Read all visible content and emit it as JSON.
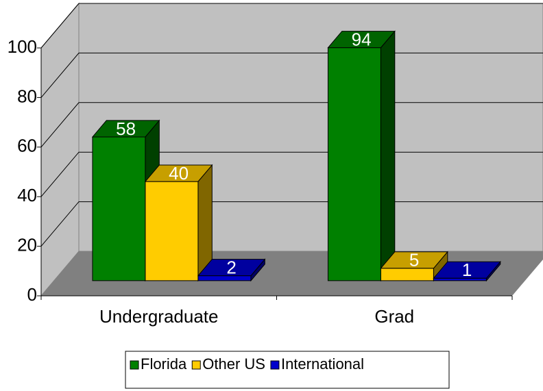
{
  "chart_data": {
    "type": "bar3d",
    "categories": [
      "Undergraduate",
      "Grad"
    ],
    "series": [
      {
        "name": "Florida",
        "color": "#008000",
        "values": [
          58,
          94
        ]
      },
      {
        "name": "Other US",
        "color": "#ffcc00",
        "values": [
          40,
          5
        ]
      },
      {
        "name": "International",
        "color": "#0000cc",
        "values": [
          2,
          1
        ]
      }
    ],
    "ylim": [
      0,
      100
    ],
    "yticks": [
      0,
      20,
      40,
      60,
      80,
      100
    ],
    "grid": true,
    "legend": "bottom"
  }
}
